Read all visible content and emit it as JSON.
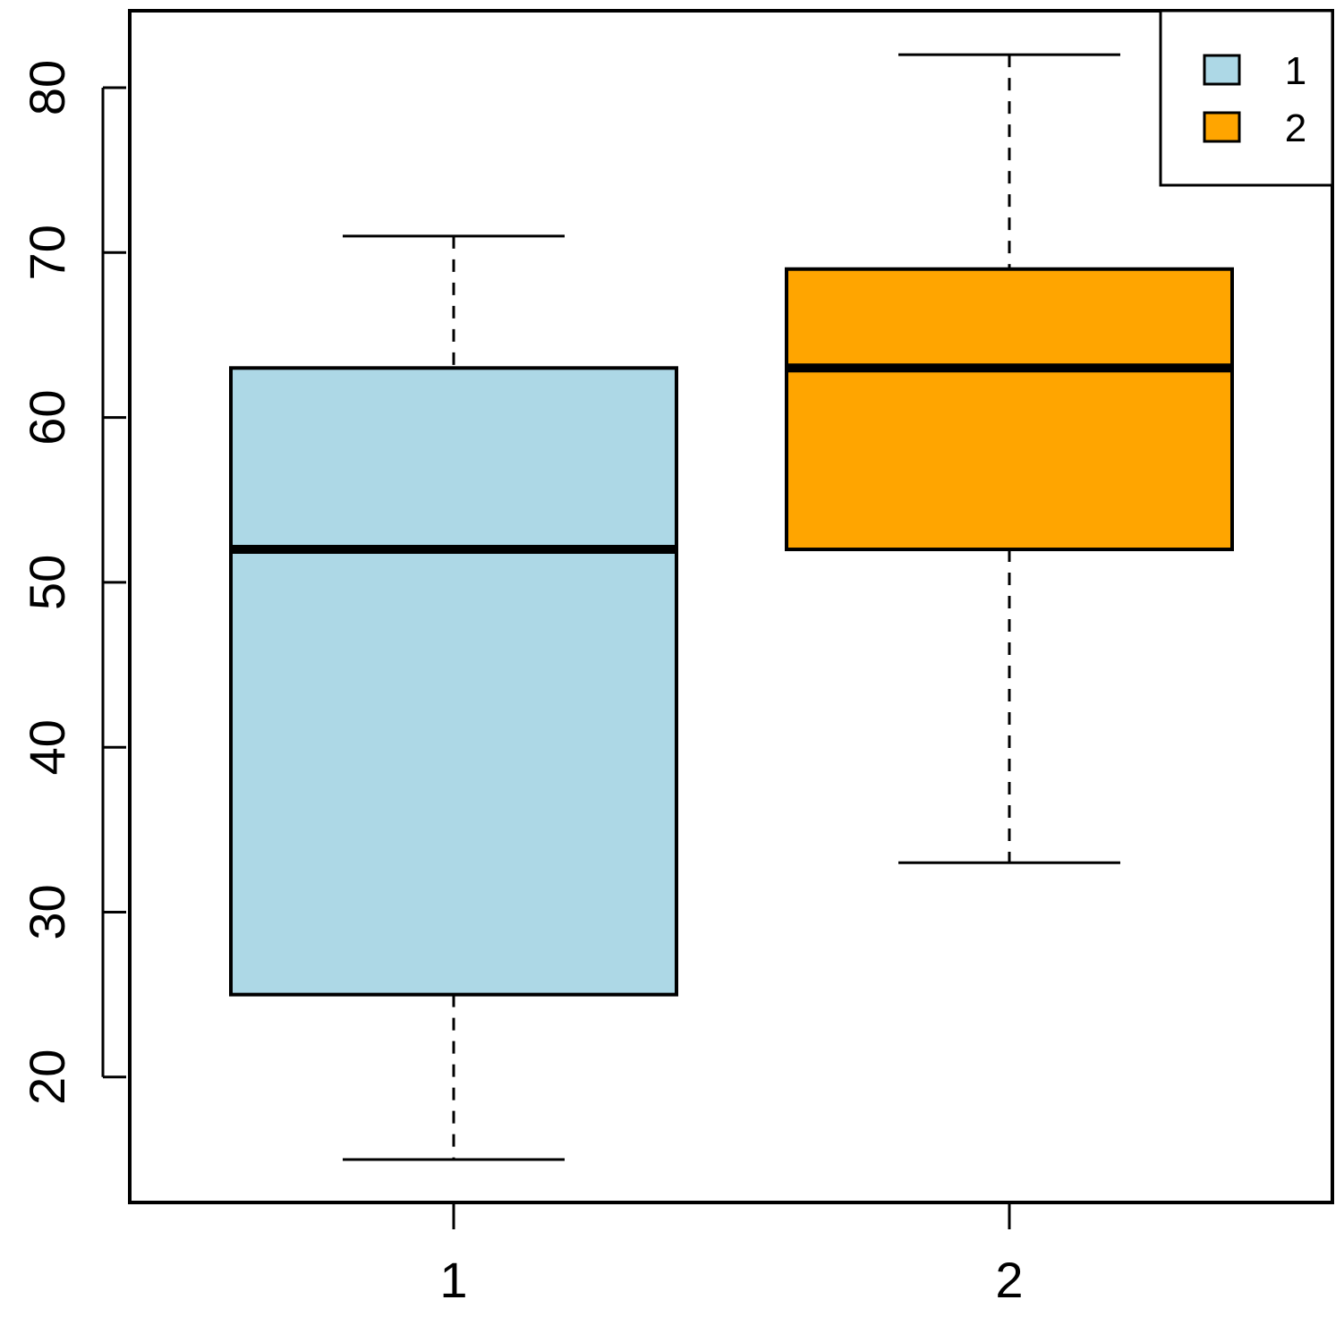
{
  "chart_data": {
    "type": "boxplot",
    "title": "",
    "xlabel": "",
    "ylabel": "",
    "categories": [
      "1",
      "2"
    ],
    "ylim": [
      13,
      84
    ],
    "yticks": [
      20,
      30,
      40,
      50,
      60,
      70,
      80
    ],
    "grid": false,
    "legend_position": "top-right",
    "boxes": [
      {
        "category": "1",
        "min": 15,
        "q1": 25,
        "median": 52,
        "q3": 63,
        "max": 71,
        "color": "#ADD8E6"
      },
      {
        "category": "2",
        "min": 33,
        "q1": 52,
        "median": 63,
        "q3": 69,
        "max": 82,
        "color": "#FFA500"
      }
    ],
    "legend": [
      {
        "label": "1",
        "color": "#ADD8E6"
      },
      {
        "label": "2",
        "color": "#FFA500"
      }
    ]
  }
}
